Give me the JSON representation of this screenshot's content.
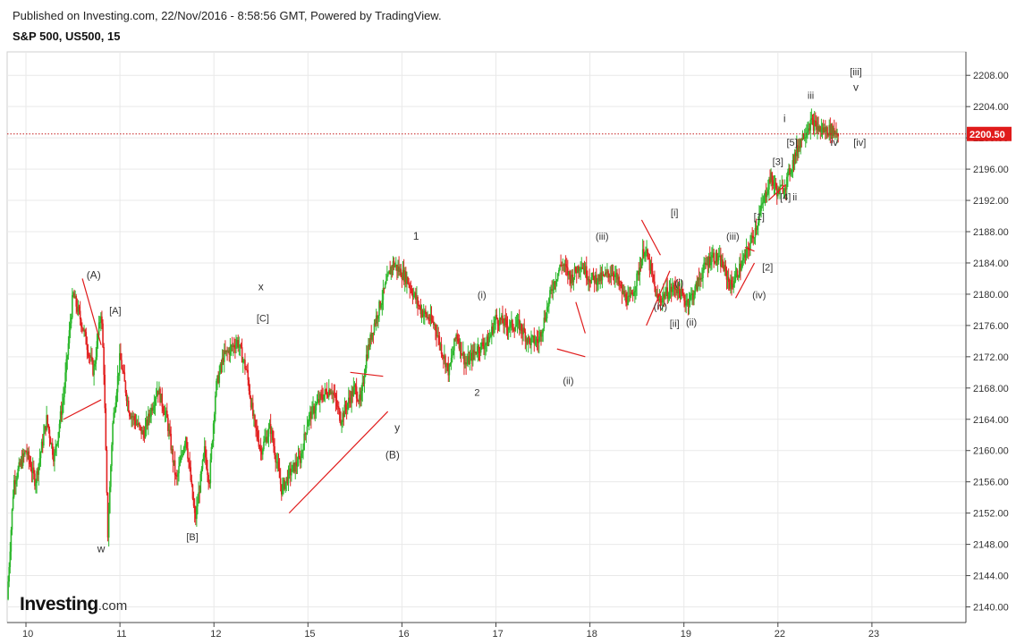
{
  "header": {
    "published": "Published on Investing.com, 22/Nov/2016 - 8:58:56 GMT, Powered by TradingView.",
    "instrument": "S&P 500, US500, 15"
  },
  "logo": {
    "name": "Investing",
    "suffix": ".com"
  },
  "colors": {
    "up": "#2eb82e",
    "down": "#e22222",
    "grid": "#e9e9e9",
    "axis": "#444444",
    "price_line": "#c62020",
    "price_tag": "#e01b1b",
    "wave_line": "#e01b1b"
  },
  "chart_data": {
    "type": "candlestick",
    "title": "",
    "ylim": [
      2138,
      2211
    ],
    "y_ticks": [
      "2140.00",
      "2144.00",
      "2148.00",
      "2152.00",
      "2156.00",
      "2160.00",
      "2164.00",
      "2168.00",
      "2172.00",
      "2176.00",
      "2180.00",
      "2184.00",
      "2188.00",
      "2192.00",
      "2196.00",
      "2200.00",
      "2204.00",
      "2208.00"
    ],
    "x_ticks": [
      "10",
      "11",
      "12",
      "15",
      "16",
      "17",
      "18",
      "19",
      "22",
      "23"
    ],
    "x_tick_pos": [
      0.2,
      1.2,
      2.2,
      3.2,
      4.2,
      5.2,
      6.2,
      7.2,
      8.2,
      9.2
    ],
    "x_range": [
      0,
      10.2
    ],
    "last_price": 2200.5,
    "last_price_label": "2200.50",
    "price_path": [
      [
        0.0,
        2141
      ],
      [
        0.07,
        2156
      ],
      [
        0.2,
        2160
      ],
      [
        0.3,
        2156
      ],
      [
        0.42,
        2164
      ],
      [
        0.5,
        2159
      ],
      [
        0.6,
        2167
      ],
      [
        0.7,
        2180
      ],
      [
        0.8,
        2176
      ],
      [
        0.92,
        2170
      ],
      [
        1.0,
        2178
      ],
      [
        1.03,
        2170
      ],
      [
        1.07,
        2149
      ],
      [
        1.12,
        2163
      ],
      [
        1.2,
        2172
      ],
      [
        1.3,
        2165
      ],
      [
        1.45,
        2162
      ],
      [
        1.6,
        2168
      ],
      [
        1.7,
        2164
      ],
      [
        1.8,
        2156
      ],
      [
        1.9,
        2162
      ],
      [
        2.0,
        2151
      ],
      [
        2.1,
        2160
      ],
      [
        2.15,
        2156
      ],
      [
        2.22,
        2168
      ],
      [
        2.3,
        2172
      ],
      [
        2.45,
        2174
      ],
      [
        2.55,
        2170
      ],
      [
        2.62,
        2164
      ],
      [
        2.7,
        2160
      ],
      [
        2.8,
        2163
      ],
      [
        2.92,
        2155
      ],
      [
        3.0,
        2157
      ],
      [
        3.12,
        2159
      ],
      [
        3.2,
        2164
      ],
      [
        3.35,
        2167
      ],
      [
        3.45,
        2168
      ],
      [
        3.55,
        2164
      ],
      [
        3.62,
        2166
      ],
      [
        3.7,
        2168
      ],
      [
        3.76,
        2166
      ],
      [
        3.82,
        2172
      ],
      [
        3.9,
        2176
      ],
      [
        4.0,
        2180
      ],
      [
        4.1,
        2184
      ],
      [
        4.25,
        2182
      ],
      [
        4.4,
        2178
      ],
      [
        4.55,
        2176
      ],
      [
        4.62,
        2173
      ],
      [
        4.7,
        2170
      ],
      [
        4.78,
        2175
      ],
      [
        4.88,
        2171
      ],
      [
        5.0,
        2173
      ],
      [
        5.12,
        2174
      ],
      [
        5.2,
        2177
      ],
      [
        5.32,
        2176
      ],
      [
        5.45,
        2176
      ],
      [
        5.55,
        2174
      ],
      [
        5.65,
        2174
      ],
      [
        5.72,
        2177
      ],
      [
        5.8,
        2181
      ],
      [
        5.9,
        2184
      ],
      [
        6.0,
        2182
      ],
      [
        6.1,
        2184
      ],
      [
        6.2,
        2182
      ],
      [
        6.32,
        2182
      ],
      [
        6.45,
        2183
      ],
      [
        6.55,
        2180
      ],
      [
        6.62,
        2179
      ],
      [
        6.7,
        2182
      ],
      [
        6.78,
        2186
      ],
      [
        6.85,
        2183
      ],
      [
        6.92,
        2179
      ],
      [
        7.0,
        2180
      ],
      [
        7.12,
        2181
      ],
      [
        7.22,
        2179
      ],
      [
        7.3,
        2180
      ],
      [
        7.4,
        2183
      ],
      [
        7.5,
        2185
      ],
      [
        7.6,
        2184
      ],
      [
        7.7,
        2181
      ],
      [
        7.78,
        2183
      ],
      [
        7.86,
        2185
      ],
      [
        7.95,
        2188
      ],
      [
        8.05,
        2192
      ],
      [
        8.12,
        2195
      ],
      [
        8.2,
        2193
      ],
      [
        8.28,
        2194
      ],
      [
        8.36,
        2197
      ],
      [
        8.45,
        2200
      ],
      [
        8.55,
        2202
      ],
      [
        8.65,
        2201
      ],
      [
        8.78,
        2201
      ],
      [
        8.85,
        2200.5
      ]
    ],
    "wave_lines": [
      [
        [
          0.8,
          2182
        ],
        [
          1.0,
          2173.5
        ]
      ],
      [
        [
          0.6,
          2164
        ],
        [
          1.0,
          2166.5
        ]
      ],
      [
        [
          3.0,
          2152
        ],
        [
          4.05,
          2165
        ]
      ],
      [
        [
          3.65,
          2170
        ],
        [
          4.0,
          2169.5
        ]
      ],
      [
        [
          5.85,
          2173
        ],
        [
          6.15,
          2172
        ]
      ],
      [
        [
          6.15,
          2175
        ],
        [
          6.05,
          2179
        ]
      ],
      [
        [
          6.75,
          2189.5
        ],
        [
          6.95,
          2185
        ]
      ],
      [
        [
          6.8,
          2176
        ],
        [
          7.05,
          2183
        ]
      ],
      [
        [
          7.75,
          2179.5
        ],
        [
          7.95,
          2184
        ]
      ],
      [
        [
          7.85,
          2186
        ],
        [
          7.95,
          2185.5
        ]
      ],
      [
        [
          8.1,
          2192
        ],
        [
          8.28,
          2194
        ]
      ]
    ],
    "annotations": [
      {
        "text": "(A)",
        "x": 0.92,
        "y": 2182.0,
        "size": 12
      },
      {
        "text": "[A]",
        "x": 1.15,
        "y": 2177.5,
        "size": 11
      },
      {
        "text": "w",
        "x": 1.0,
        "y": 2147.0,
        "size": 12
      },
      {
        "text": "[B]",
        "x": 1.97,
        "y": 2148.5,
        "size": 11
      },
      {
        "text": "x",
        "x": 2.7,
        "y": 2180.5,
        "size": 12
      },
      {
        "text": "[C]",
        "x": 2.72,
        "y": 2176.5,
        "size": 11
      },
      {
        "text": "y",
        "x": 4.15,
        "y": 2162.5,
        "size": 12
      },
      {
        "text": "(B)",
        "x": 4.1,
        "y": 2159.0,
        "size": 12
      },
      {
        "text": "1",
        "x": 4.35,
        "y": 2187.0,
        "size": 12
      },
      {
        "text": "(i)",
        "x": 5.05,
        "y": 2179.5,
        "size": 11
      },
      {
        "text": "2",
        "x": 5.0,
        "y": 2167.0,
        "size": 11
      },
      {
        "text": "(ii)",
        "x": 5.97,
        "y": 2168.5,
        "size": 11
      },
      {
        "text": "(iii)",
        "x": 6.33,
        "y": 2187.0,
        "size": 11
      },
      {
        "text": "[i]",
        "x": 7.1,
        "y": 2190.0,
        "size": 11
      },
      {
        "text": "(i)",
        "x": 7.15,
        "y": 2181.0,
        "size": 11
      },
      {
        "text": "(iv)",
        "x": 6.95,
        "y": 2178.0,
        "size": 11
      },
      {
        "text": "[ii]",
        "x": 7.1,
        "y": 2175.8,
        "size": 11
      },
      {
        "text": "(ii)",
        "x": 7.28,
        "y": 2176.0,
        "size": 11
      },
      {
        "text": "(iii)",
        "x": 7.72,
        "y": 2187.0,
        "size": 11
      },
      {
        "text": "[2]",
        "x": 8.09,
        "y": 2183.0,
        "size": 11
      },
      {
        "text": "(iv)",
        "x": 8.0,
        "y": 2179.5,
        "size": 11
      },
      {
        "text": "[1]",
        "x": 8.0,
        "y": 2189.5,
        "size": 11
      },
      {
        "text": "[4]",
        "x": 8.28,
        "y": 2192.0,
        "size": 11
      },
      {
        "text": "ii",
        "x": 8.38,
        "y": 2192.0,
        "size": 11
      },
      {
        "text": "[3]",
        "x": 8.2,
        "y": 2196.5,
        "size": 11
      },
      {
        "text": "[5]",
        "x": 8.35,
        "y": 2199.0,
        "size": 11
      },
      {
        "text": "i",
        "x": 8.27,
        "y": 2202.0,
        "size": 12
      },
      {
        "text": "iii",
        "x": 8.55,
        "y": 2205.0,
        "size": 11
      },
      {
        "text": "iv",
        "x": 8.8,
        "y": 2199.0,
        "size": 12
      },
      {
        "text": "[iv]",
        "x": 9.07,
        "y": 2199.0,
        "size": 11
      },
      {
        "text": "[iii]",
        "x": 9.03,
        "y": 2208.0,
        "size": 11
      },
      {
        "text": "v",
        "x": 9.03,
        "y": 2206.0,
        "size": 12
      }
    ]
  }
}
